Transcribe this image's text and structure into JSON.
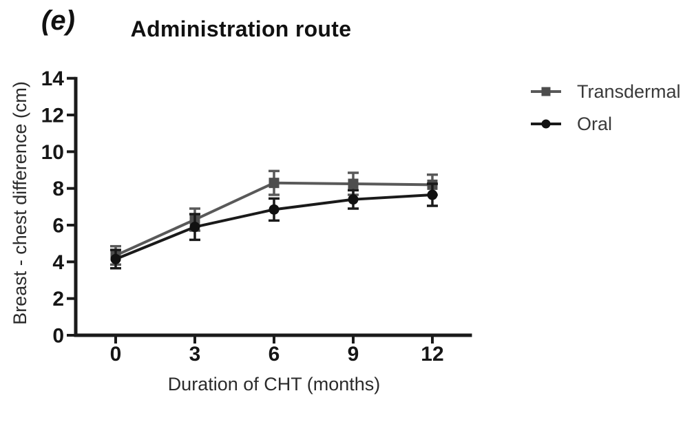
{
  "chart_data": {
    "type": "line",
    "panel_label": "(e)",
    "title": "Administration route",
    "xlabel": "Duration of CHT (months)",
    "ylabel": "Breast - chest difference (cm)",
    "x": [
      0,
      3,
      6,
      9,
      12
    ],
    "xticks": [
      0,
      3,
      6,
      9,
      12
    ],
    "yticks": [
      0,
      2,
      4,
      6,
      8,
      10,
      12,
      14
    ],
    "xlim": [
      -1.5,
      13.5
    ],
    "ylim": [
      0,
      14
    ],
    "grid": false,
    "legend_position": "right-of-plot-top",
    "error_bars": "symmetric, cap style",
    "axis_color": "#1a1a1a",
    "series": [
      {
        "name": "Transdermal",
        "marker": "square",
        "color": "#595959",
        "marker_color": "#4d4d4d",
        "values": [
          4.35,
          6.3,
          8.3,
          8.25,
          8.2
        ],
        "errors": [
          0.5,
          0.6,
          0.65,
          0.6,
          0.55
        ]
      },
      {
        "name": "Oral",
        "marker": "circle",
        "color": "#1a1a1a",
        "marker_color": "#111111",
        "values": [
          4.15,
          5.9,
          6.85,
          7.4,
          7.65
        ],
        "errors": [
          0.5,
          0.7,
          0.6,
          0.5,
          0.6
        ]
      }
    ]
  }
}
